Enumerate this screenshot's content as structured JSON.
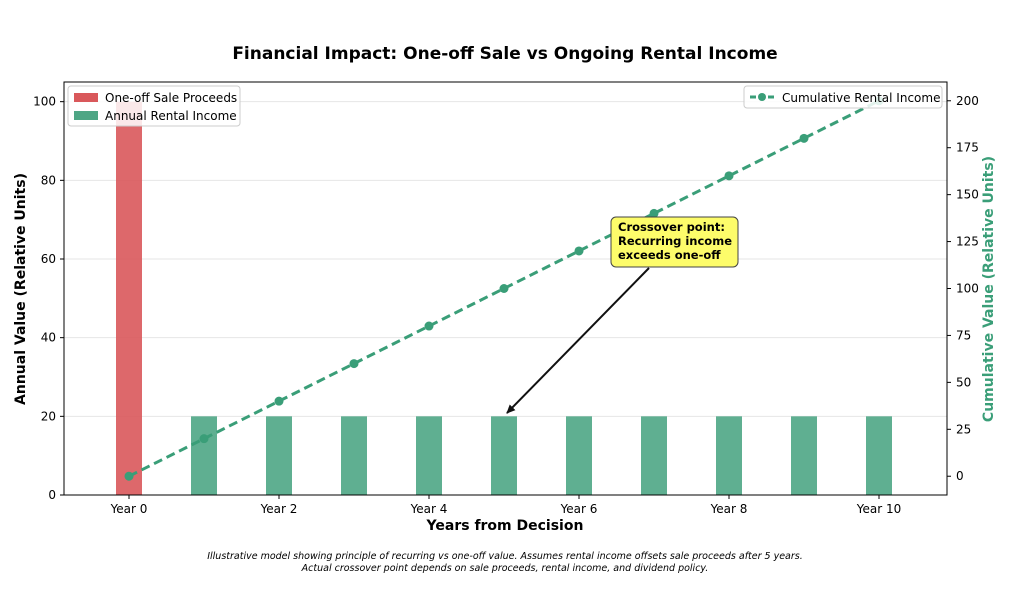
{
  "chart_data": {
    "type": "bar",
    "title": "Financial Impact: One-off Sale vs Ongoing Rental Income",
    "xlabel": "Years from Decision",
    "ylabel": "Annual Value (Relative Units)",
    "y2label": "Cumulative Value (Relative Units)",
    "x": [
      0,
      1,
      2,
      3,
      4,
      5,
      6,
      7,
      8,
      9,
      10
    ],
    "xtick_values": [
      0,
      2,
      4,
      6,
      8,
      10
    ],
    "xtick_labels": [
      "Year 0",
      "Year 2",
      "Year 4",
      "Year 6",
      "Year 8",
      "Year 10"
    ],
    "ylim": [
      0,
      105
    ],
    "y_ticks": [
      0,
      20,
      40,
      60,
      80,
      100
    ],
    "y2lim": [
      -10,
      210
    ],
    "y2_ticks": [
      0,
      25,
      50,
      75,
      100,
      125,
      150,
      175,
      200
    ],
    "series": [
      {
        "name": "One-off Sale Proceeds",
        "kind": "bar",
        "axis": "left",
        "color": "#d9585b",
        "values": [
          100,
          0,
          0,
          0,
          0,
          0,
          0,
          0,
          0,
          0,
          0
        ]
      },
      {
        "name": "Annual Rental Income",
        "kind": "bar",
        "axis": "left",
        "color": "#4ea685",
        "values": [
          0,
          20,
          20,
          20,
          20,
          20,
          20,
          20,
          20,
          20,
          20
        ]
      },
      {
        "name": "Cumulative Rental Income",
        "kind": "line",
        "style": "dashed",
        "axis": "right",
        "color": "#3a9e78",
        "values": [
          0,
          20,
          40,
          60,
          80,
          100,
          120,
          140,
          160,
          180,
          200
        ]
      }
    ],
    "legend_left_position": "top-left",
    "legend_right_position": "top-right",
    "grid": "horizontal",
    "annotation": {
      "lines": [
        "Crossover point:",
        "Recurring income",
        "exceeds one-off"
      ],
      "target_x": 5,
      "target_y": 20,
      "box_color": "#fdfc6a"
    }
  },
  "footnote": {
    "line1": "Illustrative model showing principle of recurring vs one-off value. Assumes rental income offsets sale proceeds after 5 years.",
    "line2": "Actual crossover point depends on sale proceeds, rental income, and dividend policy."
  }
}
